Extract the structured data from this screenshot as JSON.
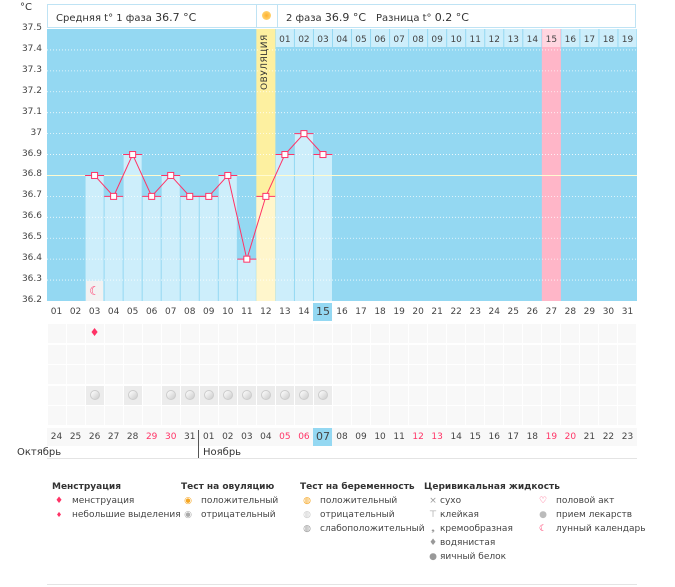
{
  "header": {
    "unit": "°C",
    "phase1": "Средняя t° 1 фаза",
    "phase1_value": "36.7 °C",
    "phase2": "2 фаза",
    "phase2_value": "36.9 °C",
    "diff": "Разница t°",
    "diff_value": "0.2 °C",
    "ovulation_label": "ОВУЛЯЦИЯ"
  },
  "colors": {
    "plot_bg": "#94d8f2",
    "bar": "#cdeefb",
    "ovulation": "#fdf0a0",
    "highlight_day": "#ffb6c8",
    "line": "#ff3366",
    "today": "#94d8f2",
    "weekend": "#ff3366"
  },
  "chart_data": {
    "type": "line",
    "ylabel": "°C",
    "ylim": [
      36.2,
      37.5
    ],
    "yticks": [
      "37.5",
      "37.4",
      "37.3",
      "37.2",
      "37.1",
      "37",
      "36.9",
      "36.8",
      "36.7",
      "36.6",
      "36.5",
      "36.4",
      "36.3",
      "36.2"
    ],
    "categories": [
      "01",
      "02",
      "03",
      "04",
      "05",
      "06",
      "07",
      "08",
      "09",
      "10",
      "11",
      "12",
      "13",
      "14",
      "15",
      "16",
      "17",
      "18",
      "19",
      "20",
      "21",
      "22",
      "23",
      "24",
      "25",
      "26",
      "27",
      "28",
      "29",
      "30",
      "31"
    ],
    "x": [
      "03",
      "04",
      "05",
      "06",
      "07",
      "08",
      "09",
      "10",
      "11",
      "12",
      "13",
      "14",
      "15"
    ],
    "values": [
      36.8,
      36.7,
      36.9,
      36.7,
      36.8,
      36.7,
      36.7,
      36.8,
      36.4,
      36.7,
      36.9,
      37.0,
      36.9
    ],
    "coverline": 36.8,
    "ovulation_day": "12",
    "phase2_days": [
      "01",
      "02",
      "03",
      "04",
      "05",
      "06",
      "07",
      "08",
      "09",
      "10",
      "11",
      "12",
      "13",
      "14",
      "15",
      "16",
      "17",
      "18",
      "19"
    ],
    "highlight_cycle_day": "27",
    "current_cycle_day": "15",
    "grid": true
  },
  "markers": {
    "moon_day": "03",
    "menstruation_day": "03",
    "pill_days": [
      "03",
      "05",
      "07",
      "08",
      "09",
      "10",
      "11",
      "12",
      "13",
      "14",
      "15"
    ]
  },
  "calendar": {
    "dates": [
      "24",
      "25",
      "26",
      "27",
      "28",
      "29",
      "30",
      "31",
      "01",
      "02",
      "03",
      "04",
      "05",
      "06",
      "07",
      "08",
      "09",
      "10",
      "11",
      "12",
      "13",
      "14",
      "15",
      "16",
      "17",
      "18",
      "19",
      "20",
      "21",
      "22",
      "23"
    ],
    "weekend": [
      5,
      6,
      12,
      13,
      19,
      20,
      26,
      27
    ],
    "today_index": 14,
    "months": [
      "Октябрь",
      "Ноябрь"
    ]
  },
  "legend": {
    "menstruation": {
      "title": "Менструация",
      "items": [
        "менструация",
        "небольшие выделения"
      ]
    },
    "ovulation_test": {
      "title": "Тест на овуляцию",
      "items": [
        "положительный",
        "отрицательный"
      ]
    },
    "pregnancy_test": {
      "title": "Тест на беременность",
      "items": [
        "положительный",
        "отрицательный",
        "слабоположительный"
      ]
    },
    "cervical": {
      "title": "Церивикальная жидкость",
      "items": [
        "сухо",
        "клейкая",
        "кремообразная",
        "водянистая",
        "яичный белок"
      ]
    },
    "other": {
      "items": [
        "половой акт",
        "прием лекарств",
        "лунный календарь"
      ]
    }
  }
}
